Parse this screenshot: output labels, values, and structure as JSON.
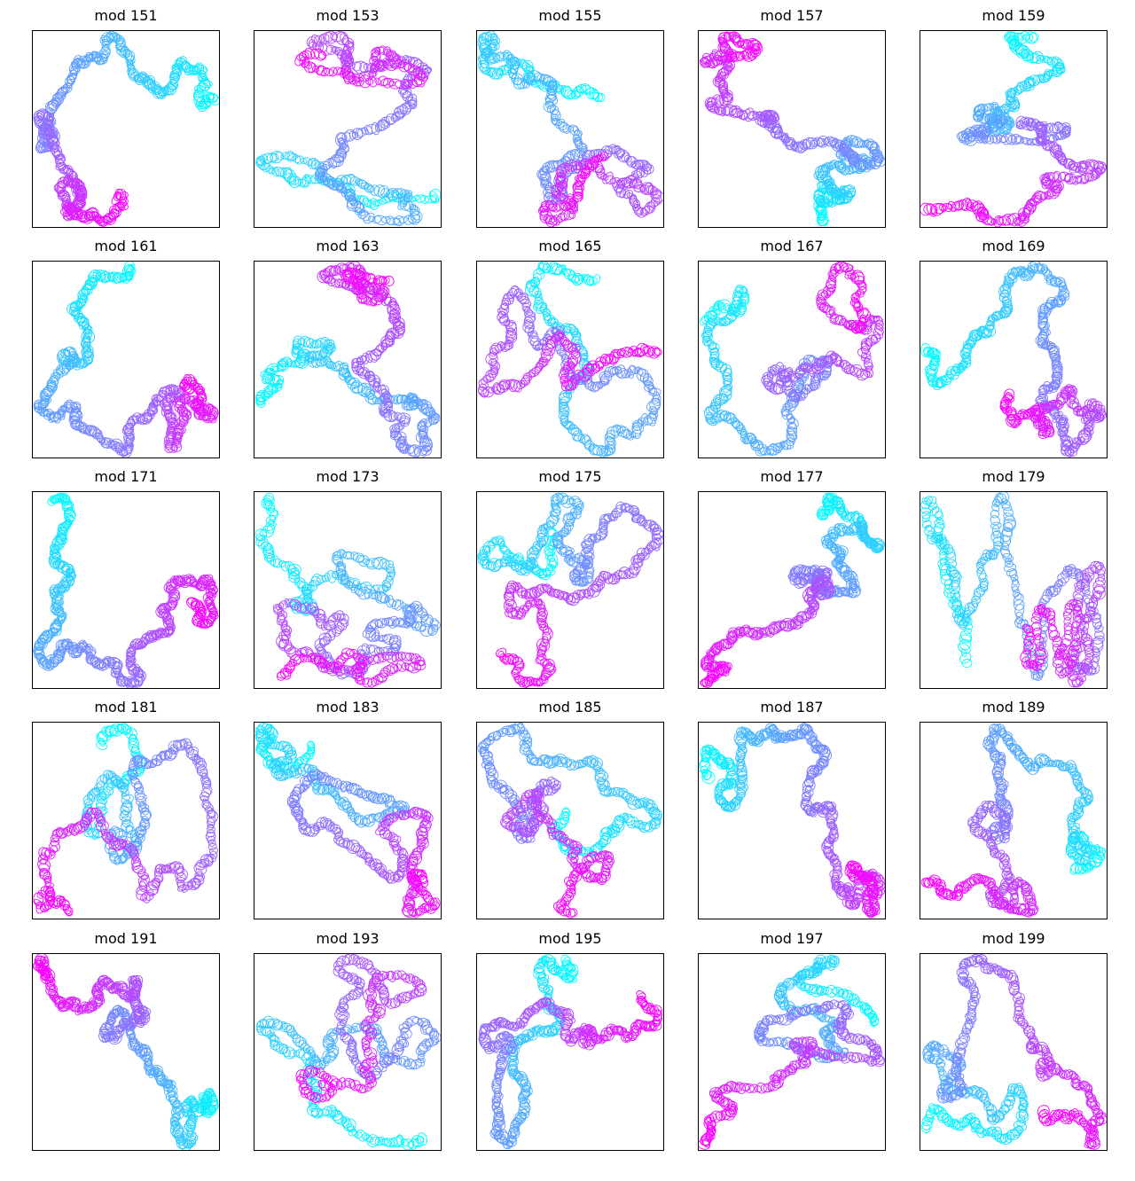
{
  "colormap": {
    "name": "cool",
    "start_color": "#00ffff",
    "end_color": "#ff00ff"
  },
  "chart_data": [
    {
      "type": "scatter",
      "title": "mod 151",
      "seed": 151
    },
    {
      "type": "scatter",
      "title": "mod 153",
      "seed": 153
    },
    {
      "type": "scatter",
      "title": "mod 155",
      "seed": 155
    },
    {
      "type": "scatter",
      "title": "mod 157",
      "seed": 157
    },
    {
      "type": "scatter",
      "title": "mod 159",
      "seed": 159
    },
    {
      "type": "scatter",
      "title": "mod 161",
      "seed": 161
    },
    {
      "type": "scatter",
      "title": "mod 163",
      "seed": 163
    },
    {
      "type": "scatter",
      "title": "mod 165",
      "seed": 165
    },
    {
      "type": "scatter",
      "title": "mod 167",
      "seed": 167
    },
    {
      "type": "scatter",
      "title": "mod 169",
      "seed": 169
    },
    {
      "type": "scatter",
      "title": "mod 171",
      "seed": 171
    },
    {
      "type": "scatter",
      "title": "mod 173",
      "seed": 173
    },
    {
      "type": "scatter",
      "title": "mod 175",
      "seed": 175
    },
    {
      "type": "scatter",
      "title": "mod 177",
      "seed": 177
    },
    {
      "type": "scatter",
      "title": "mod 179",
      "seed": 179
    },
    {
      "type": "scatter",
      "title": "mod 181",
      "seed": 181
    },
    {
      "type": "scatter",
      "title": "mod 183",
      "seed": 183
    },
    {
      "type": "scatter",
      "title": "mod 185",
      "seed": 185
    },
    {
      "type": "scatter",
      "title": "mod 187",
      "seed": 187
    },
    {
      "type": "scatter",
      "title": "mod 189",
      "seed": 189
    },
    {
      "type": "scatter",
      "title": "mod 191",
      "seed": 191
    },
    {
      "type": "scatter",
      "title": "mod 193",
      "seed": 193
    },
    {
      "type": "scatter",
      "title": "mod 195",
      "seed": 195
    },
    {
      "type": "scatter",
      "title": "mod 197",
      "seed": 197
    },
    {
      "type": "scatter",
      "title": "mod 199",
      "seed": 199
    }
  ]
}
